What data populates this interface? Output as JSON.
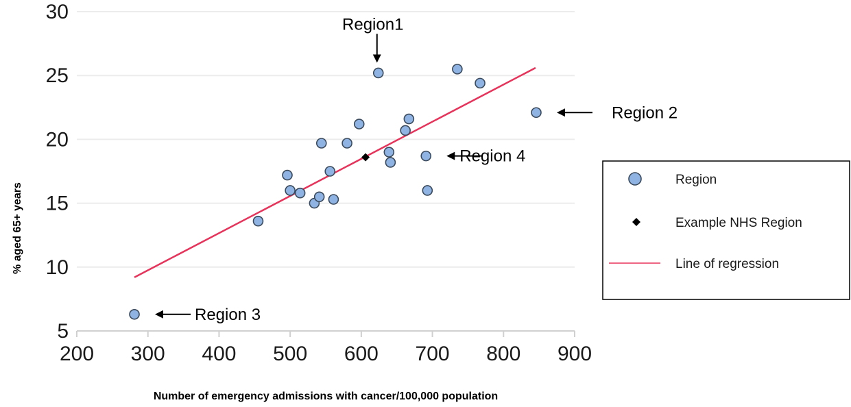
{
  "chart_data": {
    "type": "scatter",
    "xlabel": "Number of emergency admissions with cancer/100,000 population",
    "ylabel": "% aged 65+ years",
    "xlim": [
      200,
      900
    ],
    "ylim": [
      5,
      30
    ],
    "x_ticks": [
      200,
      300,
      400,
      500,
      600,
      700,
      800,
      900
    ],
    "y_ticks": [
      5,
      10,
      15,
      20,
      25,
      30
    ],
    "grid": "horizontal",
    "series": [
      {
        "name": "Region",
        "marker": "circle",
        "color": "#8fb4e3",
        "edge_color": "#3a4a5c",
        "points": [
          {
            "x": 281,
            "y": 6.3
          },
          {
            "x": 455,
            "y": 13.6
          },
          {
            "x": 496,
            "y": 17.2
          },
          {
            "x": 500,
            "y": 16.0
          },
          {
            "x": 514,
            "y": 15.8
          },
          {
            "x": 534,
            "y": 15.0
          },
          {
            "x": 541,
            "y": 15.5
          },
          {
            "x": 544,
            "y": 19.7
          },
          {
            "x": 556,
            "y": 17.5
          },
          {
            "x": 561,
            "y": 15.3
          },
          {
            "x": 580,
            "y": 19.7
          },
          {
            "x": 597,
            "y": 21.2
          },
          {
            "x": 624,
            "y": 25.2
          },
          {
            "x": 639,
            "y": 19.0
          },
          {
            "x": 641,
            "y": 18.2
          },
          {
            "x": 662,
            "y": 20.7
          },
          {
            "x": 667,
            "y": 21.6
          },
          {
            "x": 691,
            "y": 18.7
          },
          {
            "x": 693,
            "y": 16.0
          },
          {
            "x": 735,
            "y": 25.5
          },
          {
            "x": 767,
            "y": 24.4
          },
          {
            "x": 846,
            "y": 22.1
          }
        ]
      },
      {
        "name": "Example NHS Region",
        "marker": "diamond",
        "color": "#000000",
        "points": [
          {
            "x": 606,
            "y": 18.6
          }
        ]
      },
      {
        "name": "Line of regression",
        "marker": "line",
        "color": "#e8325a",
        "points": [
          {
            "x": 281,
            "y": 9.2
          },
          {
            "x": 845,
            "y": 25.6
          }
        ]
      }
    ],
    "annotations": [
      {
        "text": "Region1",
        "target": {
          "x": 624,
          "y": 25.2
        },
        "arrow": "down"
      },
      {
        "text": "Region 2",
        "target": {
          "x": 846,
          "y": 22.1
        },
        "arrow": "left"
      },
      {
        "text": "Region 3",
        "target": {
          "x": 281,
          "y": 6.3
        },
        "arrow": "left"
      },
      {
        "text": "Region 4",
        "target": {
          "x": 691,
          "y": 18.7
        },
        "arrow": "left"
      }
    ],
    "legend": {
      "position": "right",
      "entries": [
        {
          "label": "Region",
          "marker": "circle"
        },
        {
          "label": "Example NHS Region",
          "marker": "diamond"
        },
        {
          "label": "Line of regression",
          "marker": "line"
        }
      ]
    }
  }
}
